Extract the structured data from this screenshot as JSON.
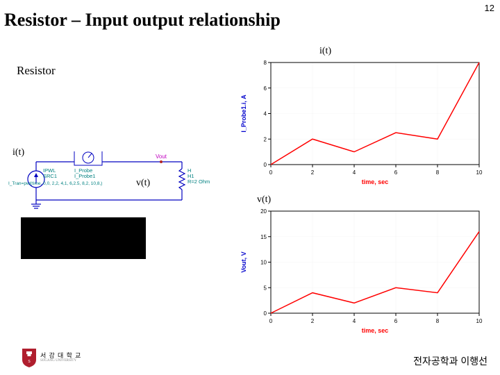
{
  "page_number": "12",
  "title": "Resistor – Input output relationship",
  "labels": {
    "resistor": "Resistor",
    "it_top": "i(t)",
    "it_circuit": "i(t)",
    "vt_circuit": "v(t)",
    "vt_chart": "v(t)"
  },
  "circuit": {
    "source_name1": "IPWL",
    "source_name2": "SRC1",
    "source_name3": "I_Tran=pwl(time, 0,0, 2,2, 4,1, 6,2.5, 8,2, 10,8,)",
    "probe_name1": "I_Probe",
    "probe_name2": "I_Probe1",
    "vout_label": "Vout",
    "resistor_name1": "H",
    "resistor_name2": "H1",
    "resistor_value": "R=2 Ohm"
  },
  "chart_it": {
    "type": "line",
    "x_values": [
      0,
      2,
      4,
      6,
      8,
      10
    ],
    "y_values": [
      0,
      2,
      1,
      2.5,
      2,
      8
    ],
    "xlim": [
      0,
      10
    ],
    "ylim": [
      0,
      8
    ],
    "xticks": [
      0,
      2,
      4,
      6,
      8,
      10
    ],
    "yticks": [
      0,
      2,
      4,
      6,
      8
    ],
    "xlabel": "time, sec",
    "ylabel": "I_Probe1.i, A",
    "line_color": "#ff0000",
    "line_width": 1.5,
    "bg_color": "#ffffff",
    "axis_color": "#000000",
    "grid_color": "#f4f4f4",
    "label_fontsize": 9,
    "xlabel_color": "#ff0000",
    "ylabel_color": "#0000cc",
    "tick_fontsize": 8
  },
  "chart_vt": {
    "type": "line",
    "x_values": [
      0,
      2,
      4,
      6,
      8,
      10
    ],
    "y_values": [
      0,
      4,
      2,
      5,
      4,
      16
    ],
    "xlim": [
      0,
      10
    ],
    "ylim": [
      0,
      20
    ],
    "xticks": [
      0,
      2,
      4,
      6,
      8,
      10
    ],
    "yticks": [
      0,
      5,
      10,
      15,
      20
    ],
    "xlabel": "time, sec",
    "ylabel": "Vout, V",
    "line_color": "#ff0000",
    "line_width": 1.5,
    "bg_color": "#ffffff",
    "axis_color": "#000000",
    "grid_color": "#f4f4f4",
    "label_fontsize": 9,
    "xlabel_color": "#ff0000",
    "ylabel_color": "#0000cc",
    "tick_fontsize": 8
  },
  "logo": {
    "kor": "서 강 대 학 교",
    "eng": "SOGANG UNIVERSITY",
    "shield_color": "#b01e2e"
  },
  "footer": "전자공학과 이행선"
}
